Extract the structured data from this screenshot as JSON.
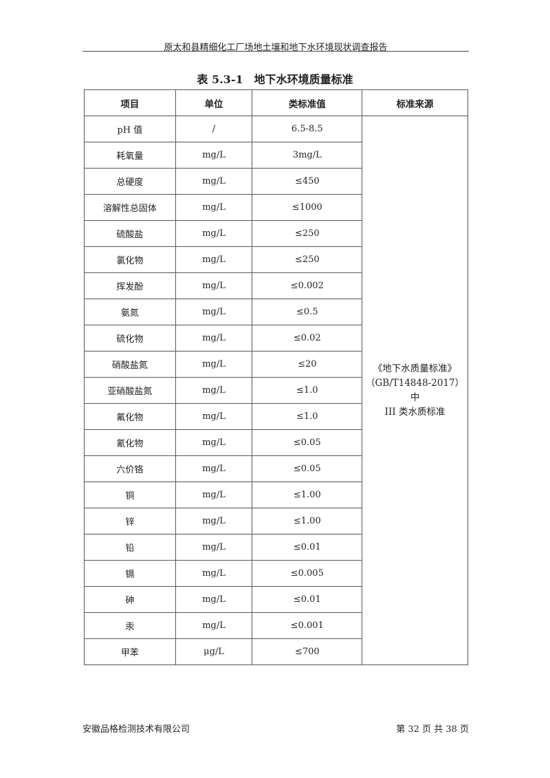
{
  "header": "原太和县精细化工厂场地土壤和地下水环境现状调查报告",
  "title": "表 5.3-1　地下水环境质量标准",
  "columns": [
    "项目",
    "单位",
    "类标准值",
    "标准来源"
  ],
  "rows": [
    [
      "pH 值",
      "/",
      "6.5-8.5"
    ],
    [
      "耗氧量",
      "mg/L",
      "3mg/L"
    ],
    [
      "总硬度",
      "mg/L",
      "≤450"
    ],
    [
      "溶解性总固体",
      "mg/L",
      "≤1000"
    ],
    [
      "硫酸盐",
      "mg/L",
      "≤250"
    ],
    [
      "氯化物",
      "mg/L",
      "≤250"
    ],
    [
      "挥发酚",
      "mg/L",
      "≤0.002"
    ],
    [
      "氨氮",
      "mg/L",
      "≤0.5"
    ],
    [
      "硫化物",
      "mg/L",
      "≤0.02"
    ],
    [
      "硝酸盐氮",
      "mg/L",
      "≤20"
    ],
    [
      "亚硝酸盐氮",
      "mg/L",
      "≤1.0"
    ],
    [
      "氟化物",
      "mg/L",
      "≤1.0"
    ],
    [
      "氰化物",
      "mg/L",
      "≤0.05"
    ],
    [
      "六价铬",
      "mg/L",
      "≤0.05"
    ],
    [
      "铜",
      "mg/L",
      "≤1.00"
    ],
    [
      "锌",
      "mg/L",
      "≤1.00"
    ],
    [
      "铅",
      "mg/L",
      "≤0.01"
    ],
    [
      "镉",
      "mg/L",
      "≤0.005"
    ],
    [
      "砷",
      "mg/L",
      "≤0.01"
    ],
    [
      "汞",
      "mg/L",
      "≤0.001"
    ],
    [
      "甲苯",
      "μg/L",
      "≤700"
    ]
  ],
  "source": [
    "《地下水质量标准》",
    "（GB/T14848-2017）中",
    "III 类水质标准"
  ],
  "footer": {
    "company": "安徽品格检测技术有限公司",
    "page": "第 32 页 共 38 页"
  }
}
